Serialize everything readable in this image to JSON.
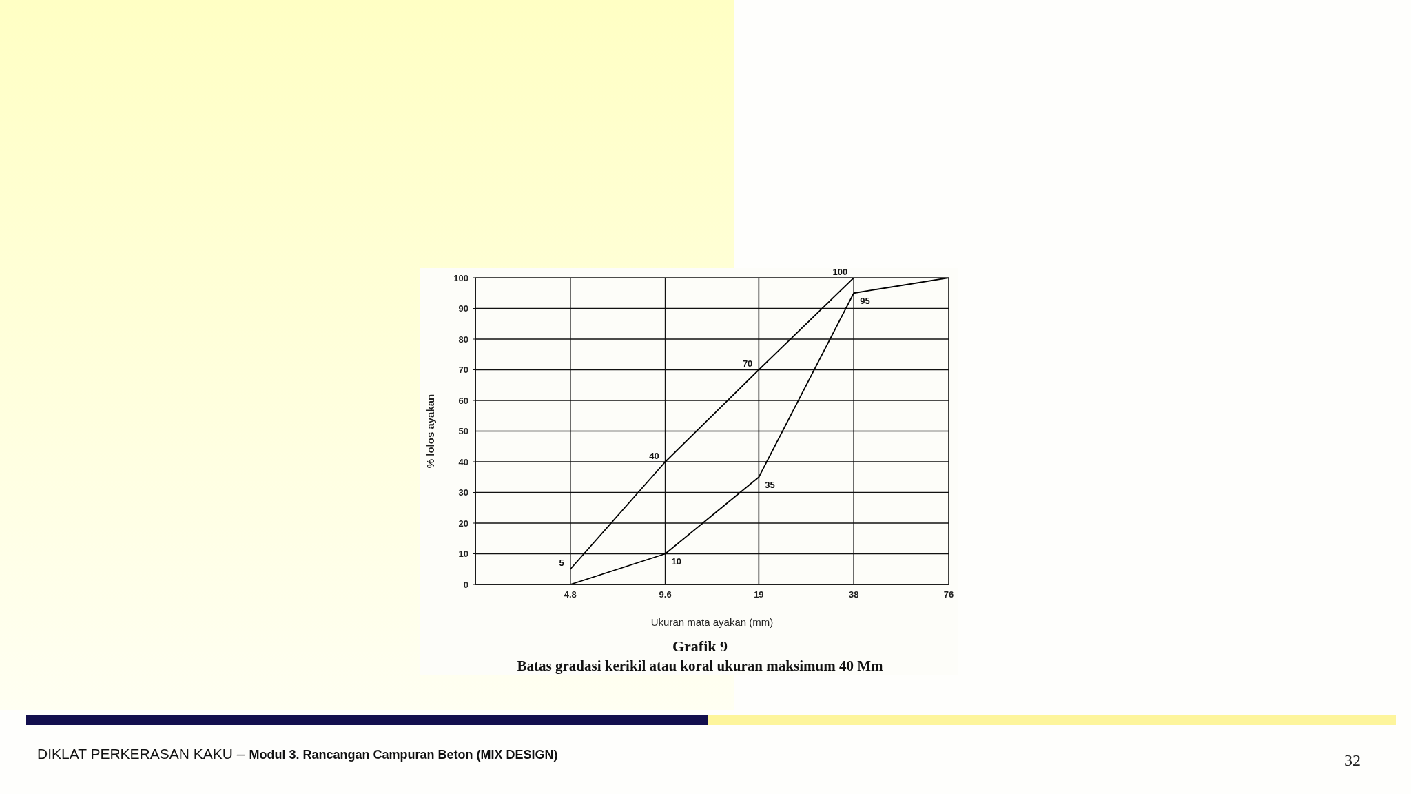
{
  "chart_data": {
    "type": "line",
    "title": "Grafik 9",
    "subtitle": "Batas gradasi kerikil atau koral ukuran maksimum 40 Mm",
    "xlabel": "Ukuran mata ayakan (mm)",
    "ylabel": "% lolos ayakan",
    "annotations": [
      "DIKLAT PERKERASAN KAKU –",
      "Modul 3. Rancangan Campuran Beton (MIX DESIGN)",
      "32"
    ],
    "log": "x",
    "xlim": [
      2.4,
      76
    ],
    "xticks": [
      4.8,
      9.6,
      19,
      38,
      76
    ],
    "ylim": [
      0,
      100
    ],
    "yticks": [
      0,
      10,
      20,
      30,
      40,
      50,
      60,
      70,
      80,
      90,
      100
    ],
    "grid": true,
    "marker": "none",
    "line_style": "solid",
    "series": [
      {
        "color": "#000000",
        "x": [
          4.8,
          9.6,
          19,
          38
        ],
        "values": [
          5,
          40,
          70,
          100
        ],
        "value_labels": [
          "5",
          "40",
          "70",
          "100"
        ]
      },
      {
        "color": "#000000",
        "x": [
          4.8,
          9.6,
          19,
          38,
          76
        ],
        "values": [
          0,
          10,
          35,
          95,
          100
        ],
        "value_labels": [
          null,
          "10",
          "35",
          "95",
          null
        ]
      }
    ]
  }
}
